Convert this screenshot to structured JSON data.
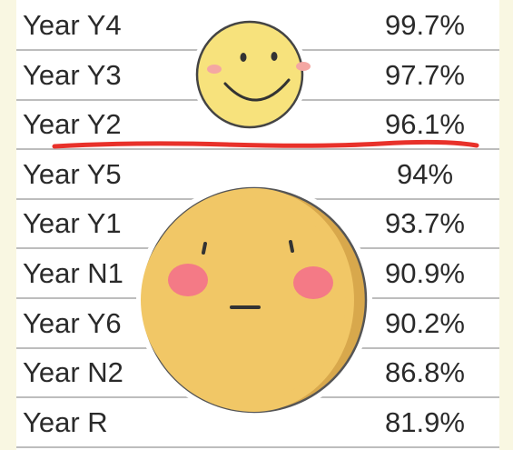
{
  "table": {
    "rows": [
      [
        "Year Y4",
        "99.7%"
      ],
      [
        "Year Y3",
        "97.7%"
      ],
      [
        "Year Y2",
        "96.1%"
      ],
      [
        "Year Y5",
        "94%"
      ],
      [
        "Year Y1",
        "93.7%"
      ],
      [
        "Year N1",
        "90.9%"
      ],
      [
        "Year Y6",
        "90.2%"
      ],
      [
        "Year N2",
        "86.8%"
      ],
      [
        "Year R",
        "81.9%"
      ]
    ]
  }
}
